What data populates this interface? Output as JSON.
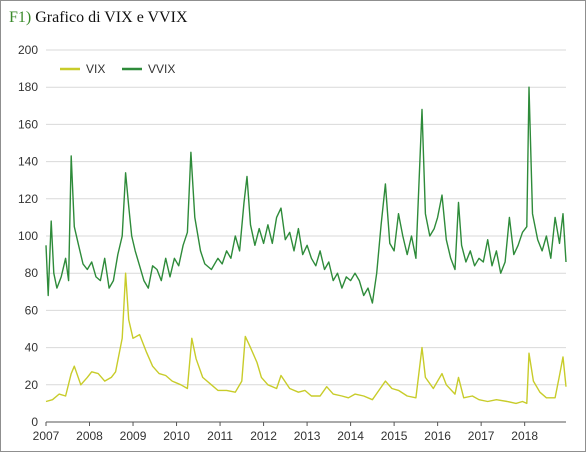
{
  "figure": {
    "label": "F1)",
    "title": "Grafico di VIX e VVIX"
  },
  "colors": {
    "vix": "#c8cc2a",
    "vvix": "#2e8b3a",
    "grid": "#d9d9d9",
    "axis": "#555555"
  },
  "chart_data": {
    "type": "line",
    "title": "Grafico di VIX e VVIX",
    "xlabel": "",
    "ylabel": "",
    "xlim": [
      2007.0,
      2018.95
    ],
    "ylim": [
      0,
      200
    ],
    "y_ticks": [
      0,
      20,
      40,
      60,
      80,
      100,
      120,
      140,
      160,
      180,
      200
    ],
    "x_ticks": [
      2007,
      2008,
      2009,
      2010,
      2011,
      2012,
      2013,
      2014,
      2015,
      2016,
      2017,
      2018
    ],
    "grid": true,
    "legend_position": "top-left",
    "series": [
      {
        "name": "VIX",
        "color": "#c8cc2a",
        "points": [
          [
            2007.0,
            11
          ],
          [
            2007.15,
            12
          ],
          [
            2007.3,
            15
          ],
          [
            2007.45,
            14
          ],
          [
            2007.58,
            26
          ],
          [
            2007.65,
            30
          ],
          [
            2007.8,
            20
          ],
          [
            2007.95,
            24
          ],
          [
            2008.05,
            27
          ],
          [
            2008.2,
            26
          ],
          [
            2008.35,
            22
          ],
          [
            2008.5,
            24
          ],
          [
            2008.6,
            27
          ],
          [
            2008.75,
            45
          ],
          [
            2008.83,
            80
          ],
          [
            2008.9,
            55
          ],
          [
            2009.0,
            45
          ],
          [
            2009.15,
            47
          ],
          [
            2009.3,
            38
          ],
          [
            2009.45,
            30
          ],
          [
            2009.6,
            26
          ],
          [
            2009.75,
            25
          ],
          [
            2009.9,
            22
          ],
          [
            2010.1,
            20
          ],
          [
            2010.25,
            18
          ],
          [
            2010.35,
            45
          ],
          [
            2010.45,
            34
          ],
          [
            2010.6,
            24
          ],
          [
            2010.8,
            20
          ],
          [
            2010.95,
            17
          ],
          [
            2011.15,
            17
          ],
          [
            2011.35,
            16
          ],
          [
            2011.5,
            22
          ],
          [
            2011.58,
            46
          ],
          [
            2011.7,
            40
          ],
          [
            2011.85,
            32
          ],
          [
            2011.95,
            24
          ],
          [
            2012.1,
            20
          ],
          [
            2012.3,
            18
          ],
          [
            2012.4,
            25
          ],
          [
            2012.6,
            18
          ],
          [
            2012.8,
            16
          ],
          [
            2012.95,
            17
          ],
          [
            2013.1,
            14
          ],
          [
            2013.3,
            14
          ],
          [
            2013.45,
            19
          ],
          [
            2013.6,
            15
          ],
          [
            2013.8,
            14
          ],
          [
            2013.95,
            13
          ],
          [
            2014.1,
            15
          ],
          [
            2014.3,
            14
          ],
          [
            2014.5,
            12
          ],
          [
            2014.65,
            17
          ],
          [
            2014.8,
            22
          ],
          [
            2014.95,
            18
          ],
          [
            2015.1,
            17
          ],
          [
            2015.3,
            14
          ],
          [
            2015.5,
            13
          ],
          [
            2015.64,
            40
          ],
          [
            2015.72,
            24
          ],
          [
            2015.9,
            18
          ],
          [
            2016.1,
            26
          ],
          [
            2016.2,
            20
          ],
          [
            2016.4,
            15
          ],
          [
            2016.48,
            24
          ],
          [
            2016.6,
            13
          ],
          [
            2016.8,
            14
          ],
          [
            2016.95,
            12
          ],
          [
            2017.15,
            11
          ],
          [
            2017.35,
            12
          ],
          [
            2017.6,
            11
          ],
          [
            2017.8,
            10
          ],
          [
            2017.95,
            11
          ],
          [
            2018.05,
            10
          ],
          [
            2018.1,
            37
          ],
          [
            2018.2,
            22
          ],
          [
            2018.35,
            16
          ],
          [
            2018.5,
            13
          ],
          [
            2018.7,
            13
          ],
          [
            2018.8,
            25
          ],
          [
            2018.88,
            35
          ],
          [
            2018.95,
            19
          ]
        ]
      },
      {
        "name": "VVIX",
        "color": "#2e8b3a",
        "points": [
          [
            2007.0,
            95
          ],
          [
            2007.05,
            68
          ],
          [
            2007.12,
            108
          ],
          [
            2007.18,
            80
          ],
          [
            2007.25,
            72
          ],
          [
            2007.35,
            78
          ],
          [
            2007.45,
            88
          ],
          [
            2007.52,
            76
          ],
          [
            2007.58,
            143
          ],
          [
            2007.65,
            105
          ],
          [
            2007.75,
            95
          ],
          [
            2007.85,
            85
          ],
          [
            2007.95,
            82
          ],
          [
            2008.05,
            86
          ],
          [
            2008.15,
            78
          ],
          [
            2008.25,
            76
          ],
          [
            2008.35,
            88
          ],
          [
            2008.45,
            72
          ],
          [
            2008.55,
            76
          ],
          [
            2008.65,
            90
          ],
          [
            2008.75,
            100
          ],
          [
            2008.83,
            134
          ],
          [
            2008.9,
            116
          ],
          [
            2008.97,
            100
          ],
          [
            2009.05,
            92
          ],
          [
            2009.15,
            84
          ],
          [
            2009.25,
            76
          ],
          [
            2009.35,
            72
          ],
          [
            2009.45,
            84
          ],
          [
            2009.55,
            82
          ],
          [
            2009.65,
            76
          ],
          [
            2009.75,
            88
          ],
          [
            2009.85,
            78
          ],
          [
            2009.95,
            88
          ],
          [
            2010.05,
            84
          ],
          [
            2010.15,
            95
          ],
          [
            2010.25,
            102
          ],
          [
            2010.33,
            145
          ],
          [
            2010.42,
            110
          ],
          [
            2010.55,
            92
          ],
          [
            2010.65,
            85
          ],
          [
            2010.8,
            82
          ],
          [
            2010.95,
            88
          ],
          [
            2011.05,
            85
          ],
          [
            2011.15,
            92
          ],
          [
            2011.25,
            88
          ],
          [
            2011.35,
            100
          ],
          [
            2011.45,
            92
          ],
          [
            2011.55,
            118
          ],
          [
            2011.62,
            132
          ],
          [
            2011.7,
            106
          ],
          [
            2011.8,
            95
          ],
          [
            2011.9,
            104
          ],
          [
            2012.0,
            96
          ],
          [
            2012.1,
            106
          ],
          [
            2012.2,
            96
          ],
          [
            2012.3,
            110
          ],
          [
            2012.4,
            115
          ],
          [
            2012.5,
            98
          ],
          [
            2012.6,
            102
          ],
          [
            2012.7,
            92
          ],
          [
            2012.8,
            104
          ],
          [
            2012.9,
            90
          ],
          [
            2013.0,
            95
          ],
          [
            2013.1,
            88
          ],
          [
            2013.2,
            84
          ],
          [
            2013.3,
            92
          ],
          [
            2013.4,
            82
          ],
          [
            2013.5,
            86
          ],
          [
            2013.6,
            76
          ],
          [
            2013.7,
            80
          ],
          [
            2013.8,
            72
          ],
          [
            2013.9,
            78
          ],
          [
            2014.0,
            76
          ],
          [
            2014.1,
            80
          ],
          [
            2014.2,
            76
          ],
          [
            2014.3,
            68
          ],
          [
            2014.4,
            72
          ],
          [
            2014.5,
            64
          ],
          [
            2014.6,
            80
          ],
          [
            2014.7,
            106
          ],
          [
            2014.8,
            128
          ],
          [
            2014.9,
            96
          ],
          [
            2015.0,
            92
          ],
          [
            2015.1,
            112
          ],
          [
            2015.2,
            100
          ],
          [
            2015.3,
            90
          ],
          [
            2015.4,
            100
          ],
          [
            2015.5,
            88
          ],
          [
            2015.64,
            168
          ],
          [
            2015.72,
            112
          ],
          [
            2015.82,
            100
          ],
          [
            2015.92,
            104
          ],
          [
            2016.0,
            110
          ],
          [
            2016.1,
            122
          ],
          [
            2016.2,
            98
          ],
          [
            2016.3,
            88
          ],
          [
            2016.4,
            82
          ],
          [
            2016.48,
            118
          ],
          [
            2016.55,
            95
          ],
          [
            2016.65,
            86
          ],
          [
            2016.75,
            92
          ],
          [
            2016.85,
            84
          ],
          [
            2016.95,
            88
          ],
          [
            2017.05,
            86
          ],
          [
            2017.15,
            98
          ],
          [
            2017.25,
            84
          ],
          [
            2017.35,
            92
          ],
          [
            2017.45,
            80
          ],
          [
            2017.55,
            86
          ],
          [
            2017.65,
            110
          ],
          [
            2017.75,
            90
          ],
          [
            2017.85,
            95
          ],
          [
            2017.95,
            102
          ],
          [
            2018.05,
            105
          ],
          [
            2018.1,
            180
          ],
          [
            2018.18,
            112
          ],
          [
            2018.3,
            98
          ],
          [
            2018.4,
            92
          ],
          [
            2018.5,
            100
          ],
          [
            2018.6,
            88
          ],
          [
            2018.7,
            110
          ],
          [
            2018.8,
            96
          ],
          [
            2018.88,
            112
          ],
          [
            2018.95,
            86
          ]
        ]
      }
    ]
  }
}
